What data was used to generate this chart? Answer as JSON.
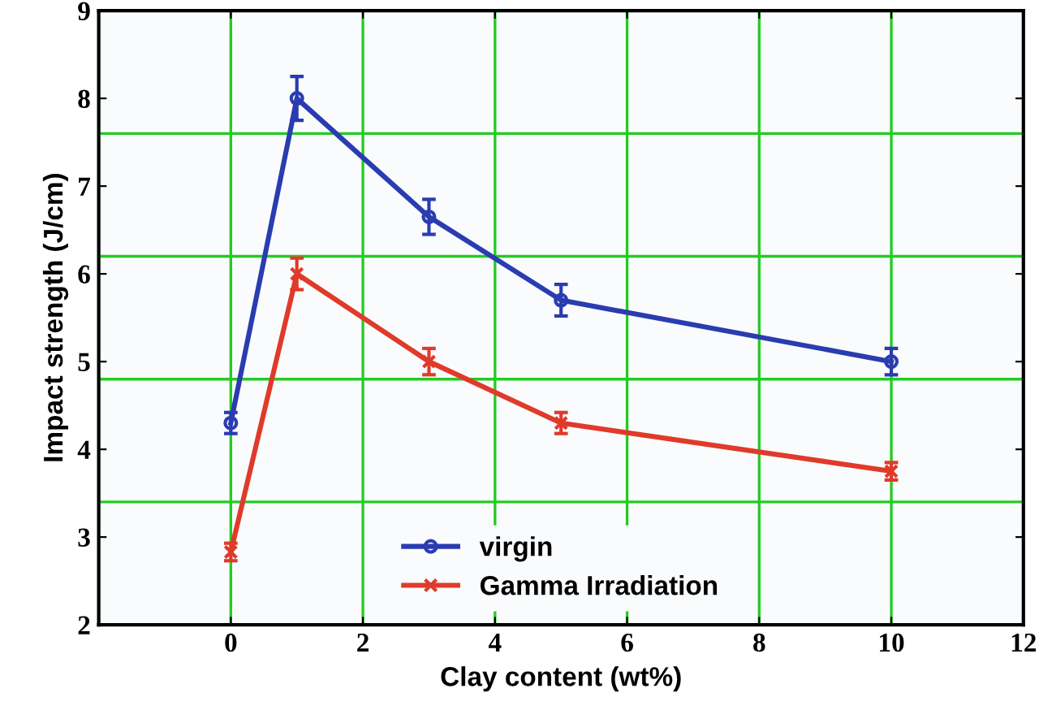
{
  "chart_data": {
    "type": "line",
    "xlabel": "Clay content (wt%)",
    "ylabel": "Impact strength (J/cm)",
    "xlim": [
      -2,
      12
    ],
    "xticks": [
      {
        "value": -2,
        "label": null
      },
      0,
      2,
      4,
      6,
      8,
      10,
      12
    ],
    "ylim": [
      2,
      9
    ],
    "yticks": [
      2,
      3,
      4,
      5,
      6,
      7,
      8,
      9
    ],
    "grid": "x",
    "legend": "bottom",
    "line_style": "solid",
    "ref_lines": [
      {
        "axis": "y",
        "value": 3.4,
        "color": "#22cc22"
      },
      {
        "axis": "y",
        "value": 4.8,
        "color": "#22cc22"
      },
      {
        "axis": "y",
        "value": 6.2,
        "color": "#22cc22"
      },
      {
        "axis": "y",
        "value": 7.6,
        "color": "#22cc22"
      }
    ],
    "series": [
      {
        "name": "virgin",
        "color": "#2a3cb0",
        "marker": "circle",
        "x": [
          0,
          1,
          3,
          5,
          10
        ],
        "values": [
          4.3,
          8.0,
          6.65,
          5.7,
          5.0
        ],
        "errors": [
          0.12,
          0.25,
          0.2,
          0.18,
          0.15
        ]
      },
      {
        "name": "Gamma Irradiation",
        "color": "#e03a2a",
        "marker": "cross",
        "x": [
          0,
          1,
          3,
          5,
          10
        ],
        "values": [
          2.83,
          6.0,
          5.0,
          4.3,
          3.75
        ],
        "errors": [
          0.1,
          0.18,
          0.15,
          0.12,
          0.1
        ]
      }
    ]
  }
}
